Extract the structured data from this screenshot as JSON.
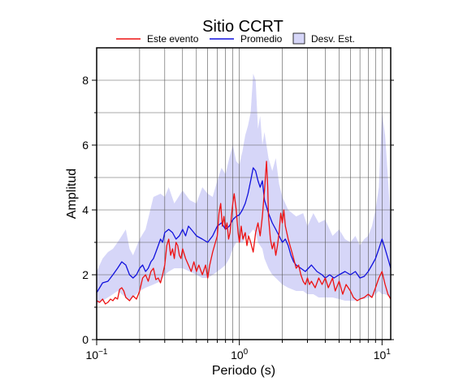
{
  "chart_data": {
    "type": "line",
    "title": "Sitio CCRT",
    "xlabel": "Periodo (s)",
    "ylabel": "Amplitud",
    "x_scale": "log",
    "xlim": [
      0.1,
      11.5
    ],
    "ylim": [
      0,
      9
    ],
    "x_ticks": [
      {
        "value": 0.1,
        "base": "10",
        "exp": "−1"
      },
      {
        "value": 1,
        "base": "10",
        "exp": "0"
      },
      {
        "value": 10,
        "base": "10",
        "exp": "1"
      }
    ],
    "y_ticks": [
      0,
      2,
      4,
      6,
      8
    ],
    "grid": true,
    "legend_position": "top",
    "colors": {
      "event": "#ee1111",
      "mean": "#1111dd",
      "band": "#d6d6f8",
      "band_edge": "#c8c8f2"
    },
    "legend": [
      {
        "label": "Este evento",
        "kind": "line",
        "color": "#ee1111"
      },
      {
        "label": "Promedio",
        "kind": "line",
        "color": "#1111dd"
      },
      {
        "label": "Desv. Est.",
        "kind": "box",
        "color": "#d6d6f8"
      }
    ],
    "series": [
      {
        "name": "Este evento",
        "points": [
          [
            0.1,
            1.2
          ],
          [
            0.105,
            1.15
          ],
          [
            0.11,
            1.25
          ],
          [
            0.115,
            1.1
          ],
          [
            0.12,
            1.15
          ],
          [
            0.125,
            1.25
          ],
          [
            0.13,
            1.2
          ],
          [
            0.135,
            1.3
          ],
          [
            0.14,
            1.25
          ],
          [
            0.145,
            1.55
          ],
          [
            0.15,
            1.6
          ],
          [
            0.155,
            1.5
          ],
          [
            0.16,
            1.3
          ],
          [
            0.17,
            1.2
          ],
          [
            0.18,
            1.35
          ],
          [
            0.19,
            1.25
          ],
          [
            0.2,
            1.5
          ],
          [
            0.21,
            1.9
          ],
          [
            0.22,
            2.0
          ],
          [
            0.23,
            1.8
          ],
          [
            0.24,
            2.1
          ],
          [
            0.25,
            2.2
          ],
          [
            0.26,
            1.85
          ],
          [
            0.27,
            1.9
          ],
          [
            0.28,
            1.75
          ],
          [
            0.29,
            2.0
          ],
          [
            0.3,
            2.3
          ],
          [
            0.31,
            2.9
          ],
          [
            0.32,
            3.1
          ],
          [
            0.33,
            2.6
          ],
          [
            0.34,
            2.8
          ],
          [
            0.35,
            2.5
          ],
          [
            0.36,
            3.0
          ],
          [
            0.37,
            2.9
          ],
          [
            0.38,
            2.6
          ],
          [
            0.39,
            2.5
          ],
          [
            0.4,
            2.8
          ],
          [
            0.42,
            2.5
          ],
          [
            0.44,
            2.3
          ],
          [
            0.46,
            2.1
          ],
          [
            0.48,
            2.4
          ],
          [
            0.5,
            2.1
          ],
          [
            0.52,
            2.3
          ],
          [
            0.55,
            2.0
          ],
          [
            0.58,
            2.3
          ],
          [
            0.6,
            1.9
          ],
          [
            0.62,
            2.3
          ],
          [
            0.65,
            2.7
          ],
          [
            0.68,
            3.0
          ],
          [
            0.7,
            3.2
          ],
          [
            0.72,
            3.9
          ],
          [
            0.74,
            4.2
          ],
          [
            0.76,
            3.5
          ],
          [
            0.78,
            3.8
          ],
          [
            0.8,
            3.4
          ],
          [
            0.82,
            3.6
          ],
          [
            0.84,
            3.1
          ],
          [
            0.86,
            3.3
          ],
          [
            0.88,
            3.8
          ],
          [
            0.9,
            4.2
          ],
          [
            0.92,
            4.5
          ],
          [
            0.95,
            4.0
          ],
          [
            0.98,
            3.3
          ],
          [
            1.0,
            3.0
          ],
          [
            1.03,
            3.5
          ],
          [
            1.06,
            3.1
          ],
          [
            1.1,
            3.3
          ],
          [
            1.13,
            2.9
          ],
          [
            1.16,
            3.2
          ],
          [
            1.2,
            3.0
          ],
          [
            1.25,
            2.7
          ],
          [
            1.3,
            3.3
          ],
          [
            1.35,
            3.6
          ],
          [
            1.4,
            3.2
          ],
          [
            1.45,
            3.8
          ],
          [
            1.5,
            4.6
          ],
          [
            1.55,
            5.5
          ],
          [
            1.58,
            4.7
          ],
          [
            1.6,
            3.8
          ],
          [
            1.65,
            3.1
          ],
          [
            1.7,
            2.8
          ],
          [
            1.75,
            3.0
          ],
          [
            1.8,
            2.6
          ],
          [
            1.85,
            2.9
          ],
          [
            1.9,
            3.3
          ],
          [
            1.95,
            3.9
          ],
          [
            2.0,
            3.6
          ],
          [
            2.05,
            4.0
          ],
          [
            2.1,
            3.5
          ],
          [
            2.2,
            3.1
          ],
          [
            2.3,
            2.8
          ],
          [
            2.4,
            2.5
          ],
          [
            2.5,
            2.2
          ],
          [
            2.6,
            2.3
          ],
          [
            2.7,
            2.0
          ],
          [
            2.8,
            1.8
          ],
          [
            2.9,
            1.7
          ],
          [
            3.0,
            1.9
          ],
          [
            3.1,
            1.7
          ],
          [
            3.2,
            1.8
          ],
          [
            3.4,
            1.6
          ],
          [
            3.6,
            1.9
          ],
          [
            3.8,
            1.7
          ],
          [
            4.0,
            1.9
          ],
          [
            4.2,
            1.6
          ],
          [
            4.5,
            1.9
          ],
          [
            4.7,
            1.5
          ],
          [
            5.0,
            1.8
          ],
          [
            5.3,
            1.4
          ],
          [
            5.6,
            1.7
          ],
          [
            6.0,
            1.5
          ],
          [
            6.3,
            1.3
          ],
          [
            6.7,
            1.2
          ],
          [
            7.0,
            1.25
          ],
          [
            7.5,
            1.3
          ],
          [
            8.0,
            1.4
          ],
          [
            8.5,
            1.3
          ],
          [
            9.0,
            1.6
          ],
          [
            9.5,
            1.9
          ],
          [
            10.0,
            2.1
          ],
          [
            10.5,
            1.7
          ],
          [
            11.0,
            1.4
          ],
          [
            11.5,
            1.25
          ]
        ]
      },
      {
        "name": "Promedio",
        "points": [
          [
            0.1,
            1.45
          ],
          [
            0.105,
            1.6
          ],
          [
            0.11,
            1.75
          ],
          [
            0.12,
            1.8
          ],
          [
            0.13,
            2.0
          ],
          [
            0.14,
            2.2
          ],
          [
            0.15,
            2.4
          ],
          [
            0.16,
            2.3
          ],
          [
            0.17,
            2.0
          ],
          [
            0.18,
            1.9
          ],
          [
            0.19,
            2.0
          ],
          [
            0.2,
            2.2
          ],
          [
            0.21,
            2.3
          ],
          [
            0.22,
            2.1
          ],
          [
            0.23,
            2.2
          ],
          [
            0.24,
            2.4
          ],
          [
            0.25,
            2.5
          ],
          [
            0.26,
            2.7
          ],
          [
            0.27,
            2.9
          ],
          [
            0.28,
            3.1
          ],
          [
            0.29,
            3.0
          ],
          [
            0.3,
            3.3
          ],
          [
            0.32,
            3.4
          ],
          [
            0.34,
            3.3
          ],
          [
            0.36,
            3.1
          ],
          [
            0.38,
            3.2
          ],
          [
            0.4,
            3.4
          ],
          [
            0.42,
            3.2
          ],
          [
            0.44,
            3.5
          ],
          [
            0.46,
            3.4
          ],
          [
            0.48,
            3.3
          ],
          [
            0.5,
            3.2
          ],
          [
            0.55,
            3.1
          ],
          [
            0.6,
            3.0
          ],
          [
            0.65,
            3.2
          ],
          [
            0.7,
            3.5
          ],
          [
            0.75,
            3.6
          ],
          [
            0.8,
            3.4
          ],
          [
            0.85,
            3.5
          ],
          [
            0.9,
            3.7
          ],
          [
            0.95,
            3.8
          ],
          [
            1.0,
            3.85
          ],
          [
            1.05,
            4.0
          ],
          [
            1.1,
            4.2
          ],
          [
            1.15,
            4.5
          ],
          [
            1.2,
            4.9
          ],
          [
            1.25,
            5.3
          ],
          [
            1.3,
            5.2
          ],
          [
            1.35,
            4.9
          ],
          [
            1.4,
            4.7
          ],
          [
            1.45,
            4.9
          ],
          [
            1.5,
            4.3
          ],
          [
            1.6,
            3.9
          ],
          [
            1.7,
            3.6
          ],
          [
            1.8,
            3.4
          ],
          [
            1.9,
            3.2
          ],
          [
            2.0,
            3.0
          ],
          [
            2.1,
            3.1
          ],
          [
            2.2,
            2.9
          ],
          [
            2.3,
            2.6
          ],
          [
            2.4,
            2.4
          ],
          [
            2.5,
            2.3
          ],
          [
            2.7,
            2.2
          ],
          [
            2.9,
            2.1
          ],
          [
            3.2,
            2.3
          ],
          [
            3.5,
            2.1
          ],
          [
            3.8,
            2.0
          ],
          [
            4.0,
            1.9
          ],
          [
            4.3,
            2.0
          ],
          [
            4.6,
            1.9
          ],
          [
            5.0,
            2.0
          ],
          [
            5.5,
            2.1
          ],
          [
            6.0,
            2.0
          ],
          [
            6.5,
            2.1
          ],
          [
            7.0,
            1.9
          ],
          [
            7.5,
            1.95
          ],
          [
            8.0,
            2.1
          ],
          [
            8.5,
            2.3
          ],
          [
            9.0,
            2.5
          ],
          [
            9.5,
            2.8
          ],
          [
            10.0,
            3.1
          ],
          [
            10.5,
            2.8
          ],
          [
            11.0,
            2.5
          ],
          [
            11.5,
            2.2
          ]
        ]
      }
    ],
    "band": {
      "name": "Desv. Est.",
      "x": [
        0.1,
        0.11,
        0.12,
        0.13,
        0.14,
        0.15,
        0.16,
        0.17,
        0.18,
        0.2,
        0.22,
        0.25,
        0.28,
        0.3,
        0.32,
        0.35,
        0.4,
        0.45,
        0.5,
        0.55,
        0.6,
        0.65,
        0.7,
        0.75,
        0.8,
        0.85,
        0.9,
        0.95,
        1.0,
        1.05,
        1.1,
        1.15,
        1.2,
        1.25,
        1.3,
        1.35,
        1.4,
        1.45,
        1.5,
        1.6,
        1.7,
        1.8,
        1.9,
        2.0,
        2.2,
        2.5,
        2.8,
        3.0,
        3.3,
        3.6,
        4.0,
        4.5,
        5.0,
        5.5,
        6.0,
        6.5,
        7.0,
        7.5,
        8.0,
        8.5,
        9.0,
        9.5,
        10.0,
        10.5,
        11.0,
        11.5
      ],
      "upper": [
        2.1,
        2.5,
        2.7,
        2.8,
        3.0,
        3.2,
        3.4,
        2.8,
        2.6,
        3.1,
        3.4,
        4.4,
        4.5,
        4.4,
        4.7,
        4.2,
        4.6,
        4.3,
        4.2,
        4.7,
        4.5,
        4.4,
        4.9,
        5.3,
        5.1,
        5.6,
        6.0,
        5.5,
        5.4,
        5.8,
        6.3,
        6.6,
        7.0,
        8.2,
        8.0,
        6.5,
        6.9,
        6.0,
        6.4,
        5.6,
        5.2,
        5.6,
        4.8,
        4.4,
        4.0,
        3.8,
        3.9,
        3.5,
        3.9,
        3.6,
        3.7,
        3.2,
        3.4,
        3.1,
        3.0,
        3.2,
        2.9,
        3.1,
        3.2,
        3.5,
        4.0,
        4.7,
        7.0,
        6.3,
        5.0,
        3.6
      ],
      "lower": [
        1.1,
        1.2,
        1.3,
        1.4,
        1.5,
        1.4,
        1.3,
        1.2,
        1.3,
        1.5,
        1.6,
        1.7,
        1.8,
        2.0,
        2.1,
        2.2,
        2.2,
        2.1,
        2.0,
        1.9,
        1.9,
        2.0,
        2.1,
        2.2,
        2.3,
        2.5,
        2.8,
        3.0,
        3.0,
        3.0,
        3.1,
        3.2,
        3.3,
        3.4,
        3.3,
        3.0,
        2.9,
        2.8,
        2.5,
        2.2,
        2.0,
        1.9,
        1.8,
        1.7,
        1.6,
        1.5,
        1.5,
        1.4,
        1.4,
        1.3,
        1.3,
        1.3,
        1.25,
        1.2,
        1.2,
        1.2,
        1.25,
        1.25,
        1.3,
        1.3,
        1.4,
        1.5,
        1.4,
        1.4,
        1.35,
        1.3
      ]
    }
  }
}
